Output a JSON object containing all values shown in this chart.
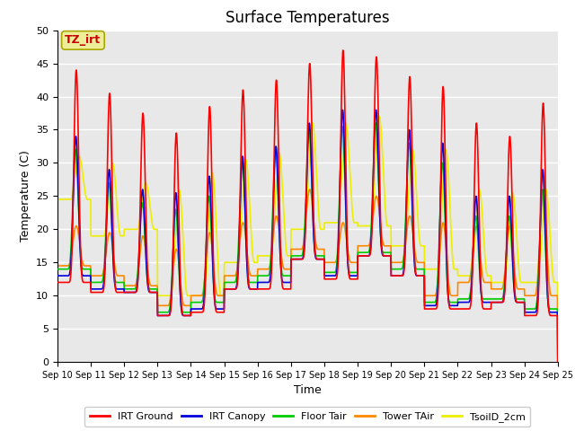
{
  "title": "Surface Temperatures",
  "xlabel": "Time",
  "ylabel": "Temperature (C)",
  "ylim": [
    0,
    50
  ],
  "xlim": [
    0,
    15
  ],
  "x_tick_labels": [
    "Sep 10",
    "Sep 11",
    "Sep 12",
    "Sep 13",
    "Sep 14",
    "Sep 15",
    "Sep 16",
    "Sep 17",
    "Sep 18",
    "Sep 19",
    "Sep 20",
    "Sep 21",
    "Sep 22",
    "Sep 23",
    "Sep 24",
    "Sep 25"
  ],
  "yticks": [
    0,
    5,
    10,
    15,
    20,
    25,
    30,
    35,
    40,
    45,
    50
  ],
  "legend_entries": [
    "IRT Ground",
    "IRT Canopy",
    "Floor Tair",
    "Tower TAir",
    "TsoilD_2cm"
  ],
  "legend_colors": [
    "#ff0000",
    "#0000dd",
    "#00cc00",
    "#ff8800",
    "#eeee00"
  ],
  "annotation_text": "TZ_irt",
  "annotation_color": "#cc0000",
  "annotation_bg": "#eeee99",
  "bg_color": "#e8e8e8",
  "title_fontsize": 12,
  "axis_fontsize": 9,
  "irt_ground_peaks": [
    44,
    40.5,
    37.5,
    34.5,
    38.5,
    41,
    42.5,
    45,
    47,
    46,
    43,
    41.5,
    36,
    34,
    39
  ],
  "irt_ground_mins": [
    12,
    10.5,
    10.5,
    7,
    7.5,
    11,
    11,
    15.5,
    12.5,
    16,
    13,
    8,
    8,
    9,
    7
  ],
  "irt_canopy_peaks": [
    34,
    29,
    26,
    25.5,
    28,
    31,
    32.5,
    36,
    38,
    38,
    35,
    33,
    25,
    25,
    29
  ],
  "irt_canopy_mins": [
    13,
    11,
    10.5,
    7,
    8,
    11,
    12,
    15.5,
    13,
    16,
    13,
    8.5,
    9,
    9,
    7.5
  ],
  "floor_tair_peaks": [
    32,
    27,
    24,
    23,
    25,
    30,
    32,
    35,
    35.5,
    36,
    33,
    30,
    22,
    22,
    26
  ],
  "floor_tair_mins": [
    14,
    12,
    11,
    7.5,
    9,
    12,
    13,
    16,
    13.5,
    16.5,
    14,
    9,
    9.5,
    9.5,
    8
  ],
  "tower_tair_peaks": [
    20.5,
    19.5,
    19,
    17,
    19.5,
    21,
    22,
    26,
    21,
    25,
    22,
    21,
    20.5,
    20.5,
    25
  ],
  "tower_tair_mins": [
    14.5,
    13,
    11.5,
    8.5,
    10,
    13,
    14,
    17,
    15,
    17.5,
    15,
    10,
    12,
    11,
    10
  ],
  "tsoil_2cm_peaks": [
    31,
    30,
    27,
    26,
    28.5,
    30.5,
    31.5,
    36,
    36,
    37,
    32,
    32,
    26,
    25.5,
    26
  ],
  "tsoil_2cm_mins": [
    24.5,
    19,
    20,
    10,
    10,
    15,
    16,
    20,
    21,
    20.5,
    17.5,
    14,
    13,
    12,
    12
  ]
}
